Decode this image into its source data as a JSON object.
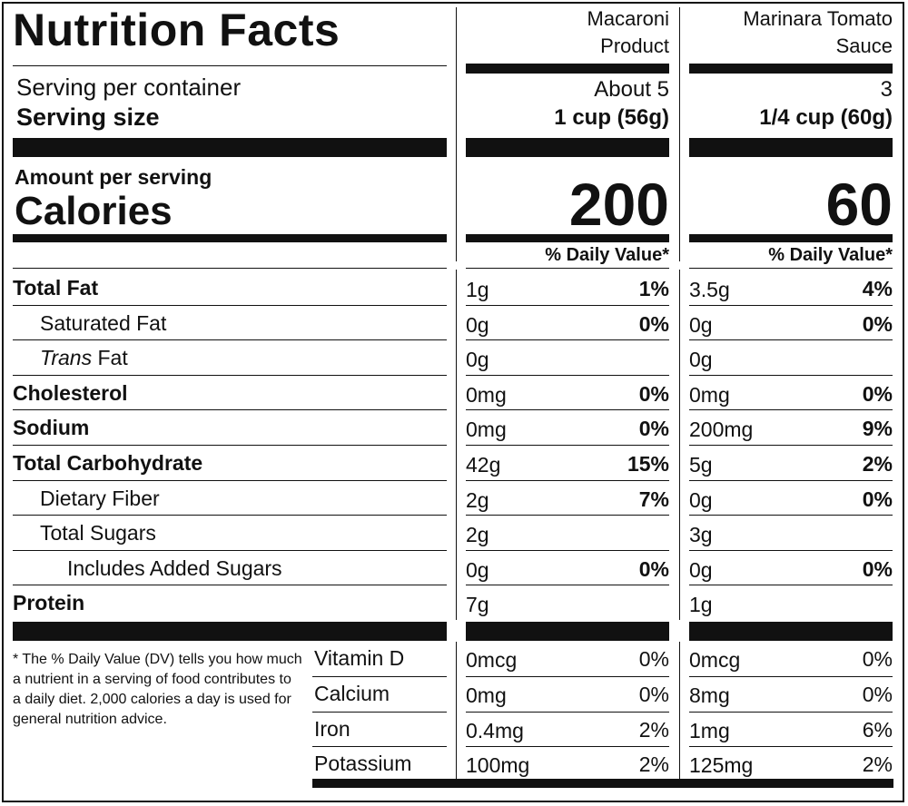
{
  "title": "Nutrition Facts",
  "servings_label": "Serving per container",
  "serving_size_label": "Serving size",
  "amount_per_serving_label": "Amount per serving",
  "calories_label": "Calories",
  "dv_header": "% Daily Value*",
  "products": [
    {
      "name_line1": "Macaroni",
      "name_line2": "Product",
      "servings": "About 5",
      "serving_size": "1 cup (56g)",
      "calories": "200",
      "nutrients": [
        {
          "amount": "1g",
          "dv": "1%"
        },
        {
          "amount": "0g",
          "dv": "0%"
        },
        {
          "amount": "0g",
          "dv": ""
        },
        {
          "amount": "0mg",
          "dv": "0%"
        },
        {
          "amount": "0mg",
          "dv": "0%"
        },
        {
          "amount": "42g",
          "dv": "15%"
        },
        {
          "amount": "2g",
          "dv": "7%"
        },
        {
          "amount": "2g",
          "dv": ""
        },
        {
          "amount": "0g",
          "dv": "0%"
        },
        {
          "amount": "7g",
          "dv": ""
        }
      ],
      "vitamins": [
        {
          "amount": "0mcg",
          "dv": "0%"
        },
        {
          "amount": "0mg",
          "dv": "0%"
        },
        {
          "amount": "0.4mg",
          "dv": "2%"
        },
        {
          "amount": "100mg",
          "dv": "2%"
        }
      ]
    },
    {
      "name_line1": "Marinara Tomato",
      "name_line2": "Sauce",
      "servings": "3",
      "serving_size": "1/4 cup (60g)",
      "calories": "60",
      "nutrients": [
        {
          "amount": "3.5g",
          "dv": "4%"
        },
        {
          "amount": "0g",
          "dv": "0%"
        },
        {
          "amount": "0g",
          "dv": ""
        },
        {
          "amount": "0mg",
          "dv": "0%"
        },
        {
          "amount": "200mg",
          "dv": "9%"
        },
        {
          "amount": "5g",
          "dv": "2%"
        },
        {
          "amount": "0g",
          "dv": "0%"
        },
        {
          "amount": "3g",
          "dv": ""
        },
        {
          "amount": "0g",
          "dv": "0%"
        },
        {
          "amount": "1g",
          "dv": ""
        }
      ],
      "vitamins": [
        {
          "amount": "0mcg",
          "dv": "0%"
        },
        {
          "amount": "8mg",
          "dv": "0%"
        },
        {
          "amount": "1mg",
          "dv": "6%"
        },
        {
          "amount": "125mg",
          "dv": "2%"
        }
      ]
    }
  ],
  "nutrient_labels": [
    {
      "pre": "",
      "italic": "",
      "post": "Total Fat",
      "bold": true,
      "indent": 0
    },
    {
      "pre": "",
      "italic": "",
      "post": "Saturated Fat",
      "bold": false,
      "indent": 1
    },
    {
      "pre": "",
      "italic": "Trans",
      "post": " Fat",
      "bold": false,
      "indent": 1
    },
    {
      "pre": "",
      "italic": "",
      "post": "Cholesterol",
      "bold": true,
      "indent": 0
    },
    {
      "pre": "",
      "italic": "",
      "post": "Sodium",
      "bold": true,
      "indent": 0
    },
    {
      "pre": "",
      "italic": "",
      "post": "Total Carbohydrate",
      "bold": true,
      "indent": 0
    },
    {
      "pre": "",
      "italic": "",
      "post": "Dietary Fiber",
      "bold": false,
      "indent": 1
    },
    {
      "pre": "",
      "italic": "",
      "post": "Total Sugars",
      "bold": false,
      "indent": 1
    },
    {
      "pre": "",
      "italic": "",
      "post": "Includes Added Sugars",
      "bold": false,
      "indent": 2
    },
    {
      "pre": "",
      "italic": "",
      "post": "Protein",
      "bold": true,
      "indent": 0
    }
  ],
  "vitamin_labels": [
    "Vitamin D",
    "Calcium",
    "Iron",
    "Potassium"
  ],
  "footnote": "* The % Daily Value (DV) tells you how much a nutrient in a serving of food contributes to a daily diet. 2,000 calories a day is used for general nutrition advice."
}
